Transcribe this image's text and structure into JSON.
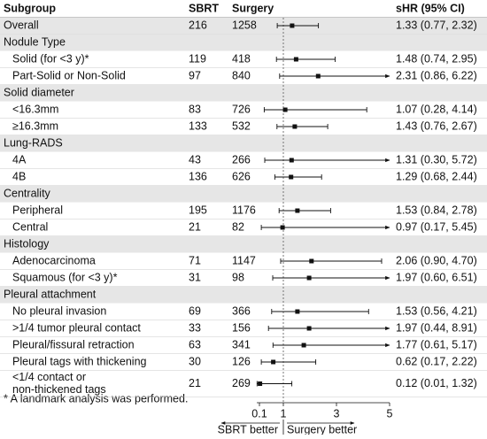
{
  "chart_data": {
    "type": "forest",
    "columns": [
      "Subgroup",
      "SBRT",
      "Surgery",
      "sHR (95% CI)"
    ],
    "overall": {
      "label": "Overall",
      "sbrt": 216,
      "surgery": 1258,
      "hr": 1.33,
      "lower": 0.77,
      "upper": 2.32,
      "ci_text": "1.33 (0.77, 2.32)"
    },
    "groups": [
      {
        "name": "Nodule Type",
        "rows": [
          {
            "label": "Solid (for <3 y)*",
            "sbrt": 119,
            "surgery": 418,
            "hr": 1.48,
            "lower": 0.74,
            "upper": 2.95,
            "ci_text": "1.48 (0.74, 2.95)"
          },
          {
            "label": "Part-Solid or Non-Solid",
            "sbrt": 97,
            "surgery": 840,
            "hr": 2.31,
            "lower": 0.86,
            "upper": 6.22,
            "ci_text": "2.31 (0.86, 6.22)"
          }
        ]
      },
      {
        "name": "Solid diameter",
        "rows": [
          {
            "label": "<16.3mm",
            "sbrt": 83,
            "surgery": 726,
            "hr": 1.07,
            "lower": 0.28,
            "upper": 4.14,
            "ci_text": "1.07 (0.28, 4.14)"
          },
          {
            "label": "≥16.3mm",
            "sbrt": 133,
            "surgery": 532,
            "hr": 1.43,
            "lower": 0.76,
            "upper": 2.67,
            "ci_text": "1.43 (0.76, 2.67)"
          }
        ]
      },
      {
        "name": "Lung-RADS",
        "rows": [
          {
            "label": "4A",
            "sbrt": 43,
            "surgery": 266,
            "hr": 1.31,
            "lower": 0.3,
            "upper": 5.72,
            "ci_text": "1.31 (0.30, 5.72)"
          },
          {
            "label": "4B",
            "sbrt": 136,
            "surgery": 626,
            "hr": 1.29,
            "lower": 0.68,
            "upper": 2.44,
            "ci_text": "1.29 (0.68, 2.44)"
          }
        ]
      },
      {
        "name": "Centrality",
        "rows": [
          {
            "label": "Peripheral",
            "sbrt": 195,
            "surgery": 1176,
            "hr": 1.53,
            "lower": 0.84,
            "upper": 2.78,
            "ci_text": "1.53 (0.84, 2.78)"
          },
          {
            "label": "Central",
            "sbrt": 21,
            "surgery": 82,
            "hr": 0.97,
            "lower": 0.17,
            "upper": 5.45,
            "ci_text": "0.97 (0.17, 5.45)"
          }
        ]
      },
      {
        "name": "Histology",
        "rows": [
          {
            "label": "Adenocarcinoma",
            "sbrt": 71,
            "surgery": 1147,
            "hr": 2.06,
            "lower": 0.9,
            "upper": 4.7,
            "ci_text": "2.06 (0.90, 4.70)"
          },
          {
            "label": "Squamous (for <3 y)*",
            "sbrt": 31,
            "surgery": 98,
            "hr": 1.97,
            "lower": 0.6,
            "upper": 6.51,
            "ci_text": "1.97 (0.60, 6.51)"
          }
        ]
      },
      {
        "name": "Pleural attachment",
        "rows": [
          {
            "label": "No pleural invasion",
            "sbrt": 69,
            "surgery": 366,
            "hr": 1.53,
            "lower": 0.56,
            "upper": 4.21,
            "ci_text": "1.53 (0.56, 4.21)"
          },
          {
            "label": ">1/4 tumor pleural contact",
            "sbrt": 33,
            "surgery": 156,
            "hr": 1.97,
            "lower": 0.44,
            "upper": 8.91,
            "ci_text": "1.97 (0.44, 8.91)"
          },
          {
            "label": "Pleural/fissural retraction",
            "sbrt": 63,
            "surgery": 341,
            "hr": 1.77,
            "lower": 0.61,
            "upper": 5.17,
            "ci_text": "1.77 (0.61, 5.17)"
          },
          {
            "label": "Pleural tags with thickening",
            "sbrt": 30,
            "surgery": 126,
            "hr": 0.62,
            "lower": 0.17,
            "upper": 2.22,
            "ci_text": "0.62 (0.17, 2.22)"
          },
          {
            "label": [
              "<1/4 contact or",
              "non-thickened tags"
            ],
            "sbrt": 21,
            "surgery": 269,
            "hr": 0.12,
            "lower": 0.01,
            "upper": 1.32,
            "ci_text": "0.12 (0.01, 1.32)"
          }
        ]
      }
    ],
    "footnote": "* A landmark analysis was performed.",
    "xlim": [
      0,
      5
    ],
    "xticks": [
      0.1,
      1,
      3,
      5
    ],
    "reference": 1,
    "left_label": "SBRT better",
    "right_label": "Surgery better",
    "color": "#111111",
    "shade": "#e6e6e6"
  }
}
